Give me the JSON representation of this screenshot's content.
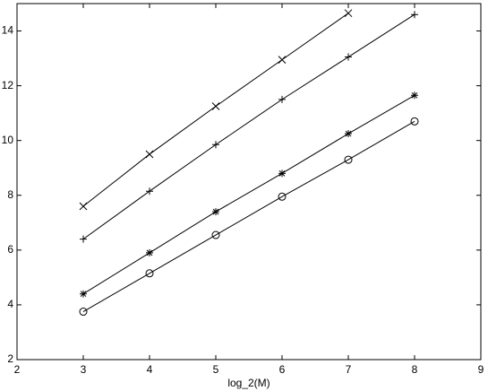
{
  "chart_data": {
    "type": "line",
    "xlabel": "log_2(M)",
    "x": [
      3,
      4,
      5,
      6,
      7,
      8
    ],
    "series": [
      {
        "color": "#000000",
        "marker": "x",
        "values": [
          7.6,
          9.5,
          11.25,
          12.95,
          14.65,
          null
        ]
      },
      {
        "color": "#000000",
        "marker": "+",
        "values": [
          6.4,
          8.15,
          9.85,
          11.5,
          13.05,
          14.6
        ]
      },
      {
        "color": "#000000",
        "marker": "*",
        "values": [
          4.4,
          5.9,
          7.4,
          8.8,
          10.25,
          11.65
        ]
      },
      {
        "color": "#000000",
        "marker": "o",
        "values": [
          3.75,
          5.15,
          6.55,
          7.95,
          9.3,
          10.7
        ]
      }
    ],
    "xlim": [
      2,
      9
    ],
    "xticks": [
      2,
      3,
      4,
      5,
      6,
      7,
      8,
      9
    ],
    "ylim": [
      2,
      15
    ],
    "yticks": [
      2,
      4,
      6,
      8,
      10,
      12,
      14
    ]
  }
}
